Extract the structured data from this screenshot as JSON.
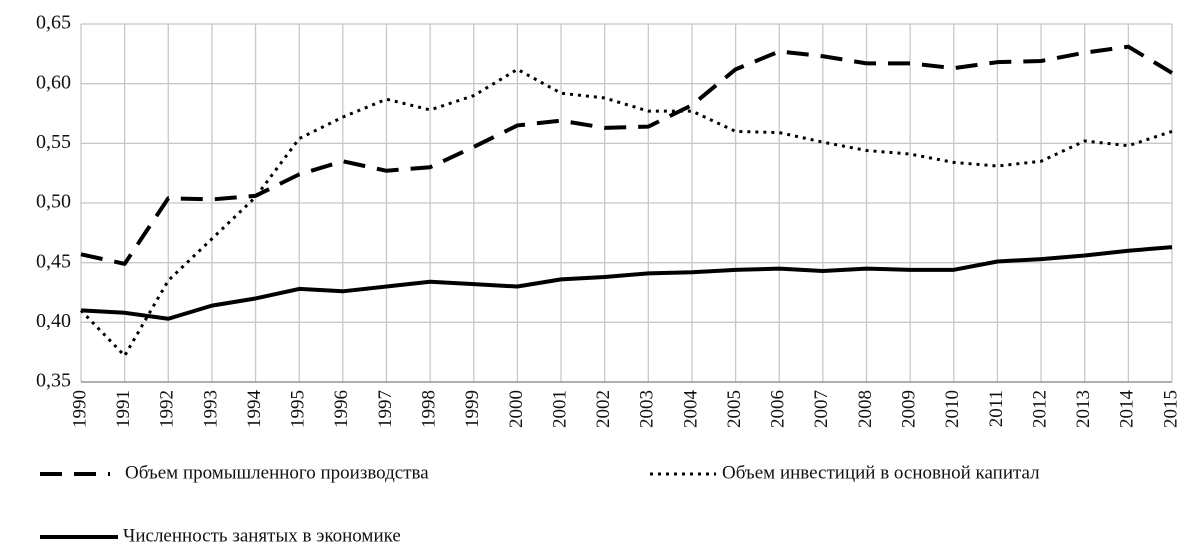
{
  "chart_data": {
    "type": "line",
    "categories": [
      "1990",
      "1991",
      "1992",
      "1993",
      "1994",
      "1995",
      "1996",
      "1997",
      "1998",
      "1999",
      "2000",
      "2001",
      "2002",
      "2003",
      "2004",
      "2005",
      "2006",
      "2007",
      "2008",
      "2009",
      "2010",
      "2011",
      "2012",
      "2013",
      "2014",
      "2015"
    ],
    "series": [
      {
        "name": "Объем промышленного производства",
        "color": "#000000",
        "dash": "dashed",
        "values": [
          0.457,
          0.449,
          0.504,
          0.503,
          0.506,
          0.524,
          0.535,
          0.527,
          0.53,
          0.547,
          0.565,
          0.569,
          0.563,
          0.564,
          0.582,
          0.612,
          0.627,
          0.623,
          0.617,
          0.617,
          0.613,
          0.618,
          0.619,
          0.626,
          0.631,
          0.609
        ]
      },
      {
        "name": "Объем инвестиций в основной капитал",
        "color": "#000000",
        "dash": "dotted",
        "values": [
          0.41,
          0.372,
          0.435,
          0.47,
          0.505,
          0.554,
          0.572,
          0.587,
          0.578,
          0.59,
          0.612,
          0.592,
          0.588,
          0.577,
          0.577,
          0.56,
          0.559,
          0.551,
          0.544,
          0.541,
          0.534,
          0.531,
          0.535,
          0.552,
          0.548,
          0.56
        ]
      },
      {
        "name": "Численность занятых в экономике",
        "color": "#000000",
        "dash": "solid",
        "values": [
          0.41,
          0.408,
          0.403,
          0.414,
          0.42,
          0.428,
          0.426,
          0.43,
          0.434,
          0.432,
          0.43,
          0.436,
          0.438,
          0.441,
          0.442,
          0.444,
          0.445,
          0.443,
          0.445,
          0.444,
          0.444,
          0.451,
          0.453,
          0.456,
          0.46,
          0.463
        ]
      }
    ],
    "ylim": [
      0.35,
      0.65
    ],
    "yticks": [
      {
        "value": 0.35,
        "label": "0,35"
      },
      {
        "value": 0.4,
        "label": "0,40"
      },
      {
        "value": 0.45,
        "label": "0,45"
      },
      {
        "value": 0.5,
        "label": "0,50"
      },
      {
        "value": 0.55,
        "label": "0,55"
      },
      {
        "value": 0.6,
        "label": "0,60"
      },
      {
        "value": 0.65,
        "label": "0,65"
      }
    ],
    "grid": true
  }
}
